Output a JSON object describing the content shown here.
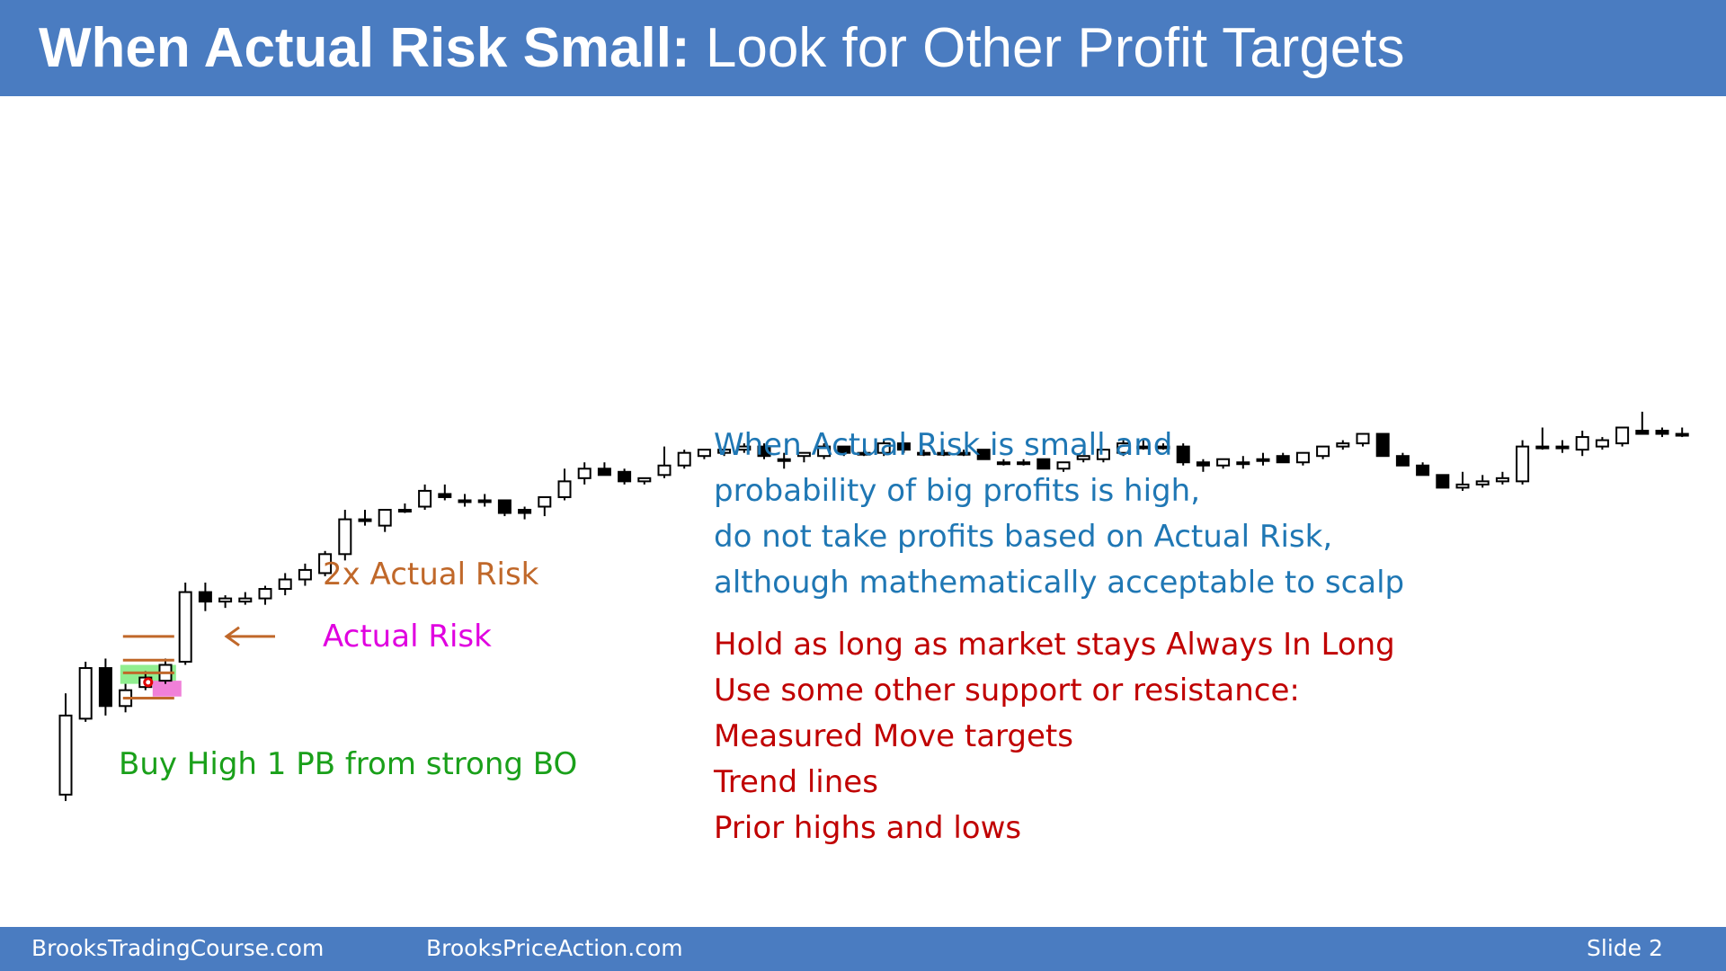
{
  "slide": {
    "title_bold": "When Actual Risk Small:",
    "title_rest": " Look for Other Profit Targets",
    "footer_left": "BrooksTradingCourse.com",
    "footer_mid": "BrooksPriceAction.com",
    "footer_right": "Slide  2"
  },
  "notes": {
    "blue_lines": [
      "When Actual Risk is small and",
      "probability of big profits is high,",
      "do not take profits based on Actual Risk,",
      "although mathematically acceptable to scalp"
    ],
    "red_lines": [
      "Hold as long as market stays Always In Long",
      "Use some other support or resistance:",
      "Measured Move targets",
      "Trend lines",
      "Prior highs and lows"
    ]
  },
  "chart_data": {
    "type": "candlestick",
    "ylim": [
      0,
      100
    ],
    "grid": false,
    "annotations": {
      "two_x_risk": "2x Actual Risk",
      "actual_risk": "Actual Risk",
      "buy_label": "Buy High 1 PB from strong BO"
    },
    "colors": {
      "bull": "#ffffff",
      "bear": "#000000",
      "outline": "#000000",
      "two_x_risk": "#c0682a",
      "actual_risk": "#e000e0",
      "buy_label": "#1aa01a",
      "green_box": "#90ee90",
      "pink_box": "#f080d8"
    },
    "candles": [
      {
        "o": 8,
        "h": 40,
        "l": 6,
        "c": 33
      },
      {
        "o": 32,
        "h": 50,
        "l": 31,
        "c": 48
      },
      {
        "o": 48,
        "h": 51,
        "l": 33,
        "c": 36
      },
      {
        "o": 36,
        "h": 43,
        "l": 34,
        "c": 41
      },
      {
        "o": 42,
        "h": 47,
        "l": 41,
        "c": 45
      },
      {
        "o": 44,
        "h": 51,
        "l": 43,
        "c": 49
      },
      {
        "o": 50,
        "h": 75,
        "l": 49,
        "c": 72
      },
      {
        "o": 72,
        "h": 75,
        "l": 66,
        "c": 69
      },
      {
        "o": 69,
        "h": 71,
        "l": 67,
        "c": 70
      },
      {
        "o": 69,
        "h": 72,
        "l": 68,
        "c": 70
      },
      {
        "o": 70,
        "h": 74,
        "l": 68,
        "c": 73
      },
      {
        "o": 73,
        "h": 78,
        "l": 71,
        "c": 76
      },
      {
        "o": 76,
        "h": 81,
        "l": 74,
        "c": 79
      },
      {
        "o": 78,
        "h": 85,
        "l": 77,
        "c": 84
      },
      {
        "o": 84,
        "h": 98,
        "l": 82,
        "c": 95
      },
      {
        "o": 95,
        "h": 98,
        "l": 93,
        "c": 95
      },
      {
        "o": 93,
        "h": 98,
        "l": 91,
        "c": 98
      },
      {
        "o": 98,
        "h": 100,
        "l": 97,
        "c": 98
      },
      {
        "o": 99,
        "h": 106,
        "l": 98,
        "c": 104
      },
      {
        "o": 103,
        "h": 106,
        "l": 101,
        "c": 102
      },
      {
        "o": 101,
        "h": 103,
        "l": 99,
        "c": 101
      },
      {
        "o": 101,
        "h": 103,
        "l": 99,
        "c": 101
      },
      {
        "o": 101,
        "h": 101,
        "l": 96,
        "c": 97
      },
      {
        "o": 98,
        "h": 99,
        "l": 95,
        "c": 97
      },
      {
        "o": 99,
        "h": 102,
        "l": 96,
        "c": 102
      },
      {
        "o": 102,
        "h": 111,
        "l": 101,
        "c": 107
      },
      {
        "o": 108,
        "h": 113,
        "l": 106,
        "c": 111
      },
      {
        "o": 111,
        "h": 113,
        "l": 109,
        "c": 109
      },
      {
        "o": 110,
        "h": 111,
        "l": 106,
        "c": 107
      },
      {
        "o": 107,
        "h": 108,
        "l": 106,
        "c": 108
      },
      {
        "o": 109,
        "h": 118,
        "l": 108,
        "c": 112
      },
      {
        "o": 112,
        "h": 117,
        "l": 111,
        "c": 116
      },
      {
        "o": 115,
        "h": 117,
        "l": 114,
        "c": 117
      },
      {
        "o": 116,
        "h": 118,
        "l": 115,
        "c": 117
      },
      {
        "o": 117,
        "h": 119,
        "l": 116,
        "c": 118
      },
      {
        "o": 118,
        "h": 119,
        "l": 114,
        "c": 115
      },
      {
        "o": 114,
        "h": 116,
        "l": 111,
        "c": 114
      },
      {
        "o": 115,
        "h": 116,
        "l": 113,
        "c": 116
      },
      {
        "o": 115,
        "h": 119,
        "l": 114,
        "c": 118
      },
      {
        "o": 118,
        "h": 118,
        "l": 115,
        "c": 116
      },
      {
        "o": 116,
        "h": 117,
        "l": 115,
        "c": 116
      },
      {
        "o": 116,
        "h": 120,
        "l": 115,
        "c": 119
      },
      {
        "o": 119,
        "h": 119,
        "l": 116,
        "c": 117
      },
      {
        "o": 116,
        "h": 117,
        "l": 115,
        "c": 116
      },
      {
        "o": 116,
        "h": 117,
        "l": 115,
        "c": 116
      },
      {
        "o": 116,
        "h": 117,
        "l": 115,
        "c": 116
      },
      {
        "o": 117,
        "h": 117,
        "l": 114,
        "c": 114
      },
      {
        "o": 113,
        "h": 114,
        "l": 112,
        "c": 113
      },
      {
        "o": 113,
        "h": 114,
        "l": 112,
        "c": 113
      },
      {
        "o": 114,
        "h": 114,
        "l": 111,
        "c": 111
      },
      {
        "o": 111,
        "h": 113,
        "l": 110,
        "c": 113
      },
      {
        "o": 114,
        "h": 115,
        "l": 113,
        "c": 115
      },
      {
        "o": 114,
        "h": 117,
        "l": 113,
        "c": 117
      },
      {
        "o": 116,
        "h": 120,
        "l": 115,
        "c": 119
      },
      {
        "o": 118,
        "h": 120,
        "l": 117,
        "c": 118
      },
      {
        "o": 118,
        "h": 119,
        "l": 117,
        "c": 118
      },
      {
        "o": 118,
        "h": 119,
        "l": 112,
        "c": 113
      },
      {
        "o": 113,
        "h": 114,
        "l": 110,
        "c": 112
      },
      {
        "o": 112,
        "h": 114,
        "l": 111,
        "c": 114
      },
      {
        "o": 113,
        "h": 115,
        "l": 111,
        "c": 113
      },
      {
        "o": 114,
        "h": 116,
        "l": 112,
        "c": 114
      },
      {
        "o": 115,
        "h": 116,
        "l": 113,
        "c": 113
      },
      {
        "o": 113,
        "h": 116,
        "l": 112,
        "c": 116
      },
      {
        "o": 115,
        "h": 118,
        "l": 114,
        "c": 118
      },
      {
        "o": 118,
        "h": 120,
        "l": 117,
        "c": 119
      },
      {
        "o": 119,
        "h": 122,
        "l": 118,
        "c": 122
      },
      {
        "o": 122,
        "h": 122,
        "l": 115,
        "c": 115
      },
      {
        "o": 115,
        "h": 116,
        "l": 112,
        "c": 112
      },
      {
        "o": 112,
        "h": 113,
        "l": 109,
        "c": 109
      },
      {
        "o": 109,
        "h": 109,
        "l": 105,
        "c": 105
      },
      {
        "o": 105,
        "h": 110,
        "l": 104,
        "c": 106
      },
      {
        "o": 106,
        "h": 109,
        "l": 105,
        "c": 107
      },
      {
        "o": 107,
        "h": 110,
        "l": 106,
        "c": 108
      },
      {
        "o": 107,
        "h": 120,
        "l": 106,
        "c": 118
      },
      {
        "o": 118,
        "h": 124,
        "l": 117,
        "c": 118
      },
      {
        "o": 118,
        "h": 120,
        "l": 116,
        "c": 118
      },
      {
        "o": 117,
        "h": 123,
        "l": 115,
        "c": 121
      },
      {
        "o": 118,
        "h": 121,
        "l": 117,
        "c": 120
      },
      {
        "o": 119,
        "h": 124,
        "l": 118,
        "c": 124
      },
      {
        "o": 123,
        "h": 129,
        "l": 122,
        "c": 122
      },
      {
        "o": 123,
        "h": 124,
        "l": 121,
        "c": 122
      },
      {
        "o": 122,
        "h": 124,
        "l": 121,
        "c": 122
      }
    ]
  }
}
